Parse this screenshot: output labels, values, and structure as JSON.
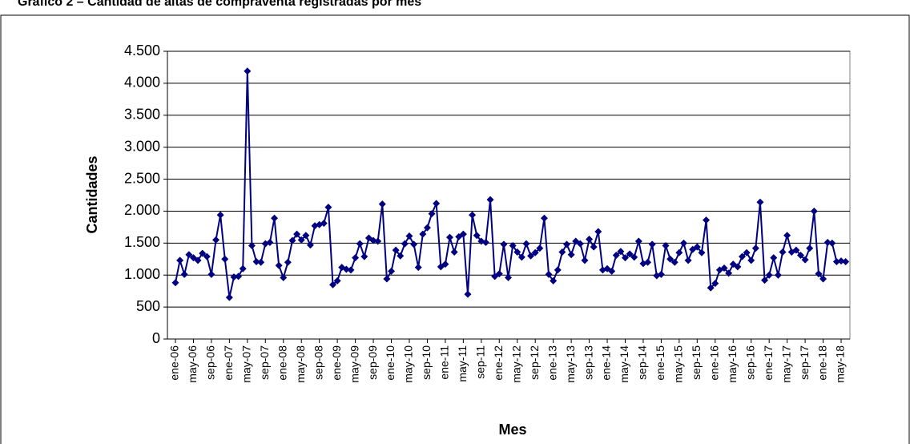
{
  "chart_data": {
    "type": "line",
    "title": "Gráfico 2 – Cantidad de altas de compraventa registradas por mes",
    "x_label": "Mes",
    "y_label": "Cantidades",
    "categories": [
      "ene-06",
      null,
      null,
      null,
      "may-06",
      null,
      null,
      null,
      "sep-06",
      null,
      null,
      null,
      "ene-07",
      null,
      null,
      null,
      "may-07",
      null,
      null,
      null,
      "sep-07",
      null,
      null,
      null,
      "ene-08",
      null,
      null,
      null,
      "may-08",
      null,
      null,
      null,
      "sep-08",
      null,
      null,
      null,
      "ene-09",
      null,
      null,
      null,
      "may-09",
      null,
      null,
      null,
      "sep-09",
      null,
      null,
      null,
      "ene-10",
      null,
      null,
      null,
      "may-10",
      null,
      null,
      null,
      "sep-10",
      null,
      null,
      null,
      "ene-11",
      null,
      null,
      null,
      "may-11",
      null,
      null,
      null,
      "sep-11",
      null,
      null,
      null,
      "ene-12",
      null,
      null,
      null,
      "may-12",
      null,
      null,
      null,
      "sep-12",
      null,
      null,
      null,
      "ene-13",
      null,
      null,
      null,
      "may-13",
      null,
      null,
      null,
      "sep-13",
      null,
      null,
      null,
      "ene-14",
      null,
      null,
      null,
      "may-14",
      null,
      null,
      null,
      "sep-14",
      null,
      null,
      null,
      "ene-15",
      null,
      null,
      null,
      "may-15",
      null,
      null,
      null,
      "sep-15",
      null,
      null,
      null,
      "ene-16",
      null,
      null,
      null,
      "may-16",
      null,
      null,
      null,
      "sep-16",
      null,
      null,
      null,
      "ene-17",
      null,
      null,
      null,
      "may-17",
      null,
      null,
      null,
      "sep-17",
      null,
      null,
      null,
      "ene-18",
      null,
      null,
      null,
      "may-18",
      null
    ],
    "series": [
      {
        "color": "#000080",
        "values": [
          880,
          1230,
          1010,
          1320,
          1270,
          1230,
          1340,
          1290,
          1010,
          1550,
          1940,
          1250,
          650,
          970,
          980,
          1100,
          4190,
          1460,
          1210,
          1200,
          1490,
          1510,
          1890,
          1150,
          960,
          1200,
          1540,
          1640,
          1550,
          1620,
          1470,
          1770,
          1790,
          1810,
          2060,
          850,
          910,
          1120,
          1090,
          1080,
          1270,
          1490,
          1290,
          1580,
          1540,
          1530,
          2110,
          940,
          1060,
          1390,
          1300,
          1490,
          1610,
          1480,
          1120,
          1640,
          1740,
          1960,
          2120,
          1130,
          1170,
          1590,
          1360,
          1600,
          1640,
          700,
          1940,
          1620,
          1530,
          1510,
          2180,
          980,
          1020,
          1480,
          960,
          1460,
          1360,
          1280,
          1490,
          1300,
          1350,
          1420,
          1890,
          1010,
          910,
          1080,
          1360,
          1480,
          1320,
          1530,
          1490,
          1230,
          1560,
          1440,
          1680,
          1080,
          1100,
          1060,
          1310,
          1370,
          1270,
          1330,
          1280,
          1530,
          1180,
          1200,
          1480,
          990,
          1010,
          1460,
          1250,
          1200,
          1350,
          1500,
          1230,
          1400,
          1440,
          1350,
          1860,
          800,
          870,
          1080,
          1110,
          1030,
          1170,
          1130,
          1290,
          1350,
          1230,
          1420,
          2140,
          920,
          1000,
          1270,
          1000,
          1360,
          1620,
          1360,
          1390,
          1310,
          1240,
          1420,
          2000,
          1020,
          940,
          1510,
          1500,
          1210,
          1220,
          1210
        ]
      }
    ],
    "ylim": [
      0,
      4500
    ],
    "yticks": [
      0,
      500,
      {
        "value": 1000,
        "label": "1.000"
      },
      {
        "value": 1500,
        "label": "1.500"
      },
      {
        "value": 2000,
        "label": "2.000"
      },
      {
        "value": 2500,
        "label": "2.500"
      },
      {
        "value": 3000,
        "label": "3.000"
      },
      {
        "value": 3500,
        "label": "3.500"
      },
      {
        "value": 4000,
        "label": "4.000"
      },
      {
        "value": 4500,
        "label": "4.500"
      }
    ],
    "grid": true
  }
}
